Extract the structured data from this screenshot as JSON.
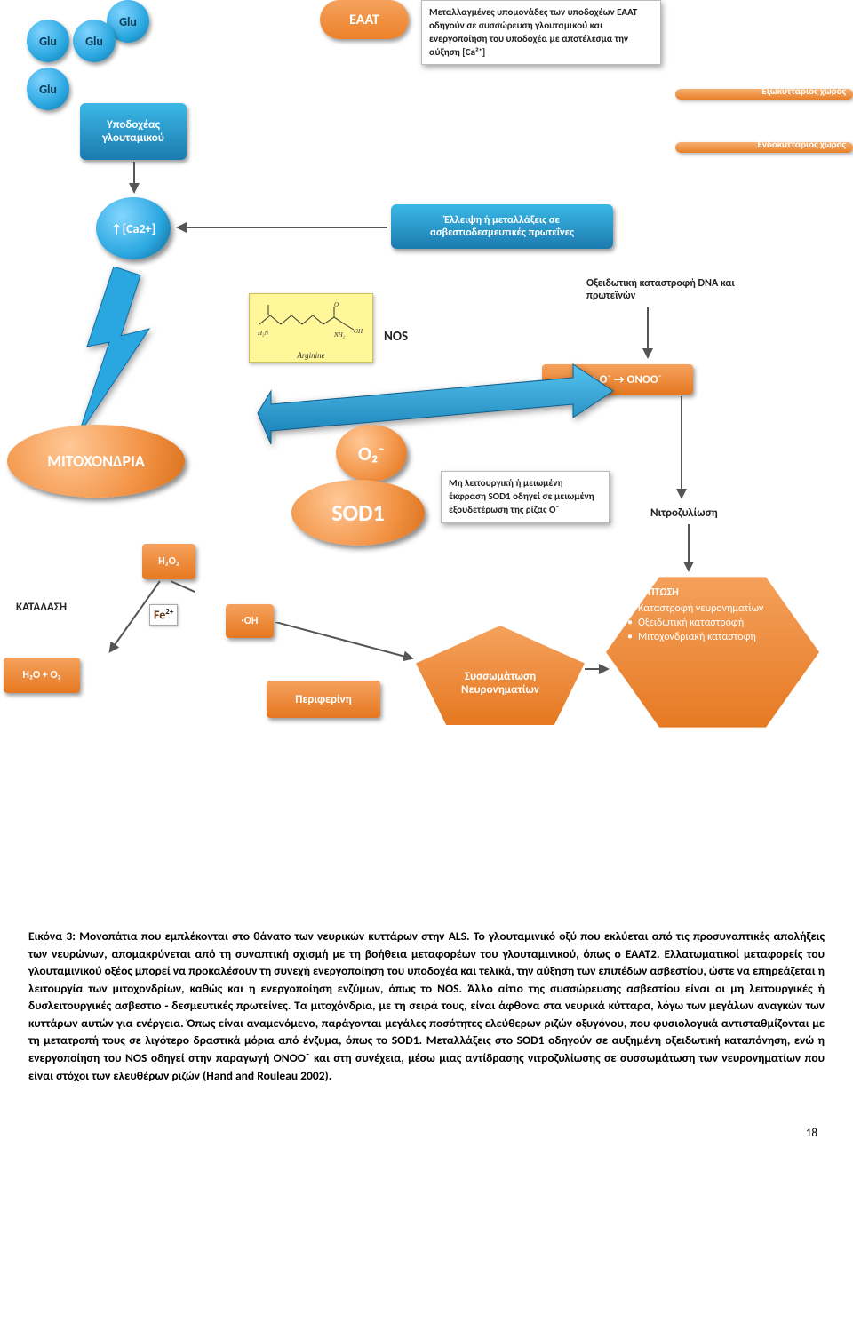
{
  "glu": {
    "label": "Glu"
  },
  "eaat": {
    "label": "EAAT"
  },
  "eaat_info": "Μεταλλαγμένες υπομονάδες των υποδοχέων EAAT οδηγούν σε συσσώρευση γλουταμικού και ενεργοποίηση του υποδοχέα με αποτέλεσμα την αύξηση [Ca²⁺]",
  "receptor": "Υποδοχέας γλουταμικού",
  "space_out": "Εξωκυττάριος χώρος",
  "space_in": "Ενδοκυττάριος χώρος",
  "ca2": "↑[Ca2+]",
  "ca_binding": "Έλλειψη ή μεταλλάξεις σε ασβεστιοδεσμευτικές πρωτεΐνες",
  "dna_dmg": "Οξειδωτική καταστροφή DNA και πρωτεϊνών",
  "arginine": "Arginine",
  "nos": "NOS",
  "onoo": "NO + O⁻ → ONOO⁻",
  "mito_round": "ΜΙΤΟΧΟΝΔΡΙΑ",
  "o2_round": "O₂⁻",
  "sod1_round": "SOD1",
  "sod1_info": "Μη λειτουργική ή μειωμένη έκφραση SOD1 οδηγεί σε μειωμένη εξουδετέρωση της ρίζας O⁻",
  "nitros": "Νιτροζυλίωση",
  "h2o2": "H₂O₂",
  "katalasi": "ΚΑΤΑΛΑΣΗ",
  "fe": "Fe",
  "fe_sup": "2+",
  "oh": "·OH",
  "h2o_o2": "H₂O + O₂",
  "periferini": "Περιφερίνη",
  "aggreg": "Συσσωμάτωση Νευρονηματίων",
  "apopt_title": "ΑΠΟΠΤΩΣΗ",
  "apopt_items": [
    "Καταστροφή νευρονηματίων",
    "Οξειδωτική καταστροφή",
    "Μιτοχονδριακή καταστοφή"
  ],
  "caption_lead": "Εικόνα 3: Μονοπάτια που εμπλέκονται στο θάνατο των νευρικών κυττάρων στην ALS. ",
  "caption_body": "Το γλουταμινικό οξύ που εκλύεται από τις προσυναπτικές απολήξεις των νευρώνων, απομακρύνεται από τη συναπτική σχισμή με τη βοήθεια μεταφορέων του γλουταμινικού, όπως ο EAAT2. Ελλατωματικοί μεταφορείς του γλουταμινικού οξέος μπορεί να προκαλέσουν τη συνεχή ενεργοποίηση του υποδοχέα και τελικά, την αύξηση των επιπέδων ασβεστίου, ώστε να επηρεάζεται η λειτουργία των μιτοχονδρίων, καθώς και η ενεργοποίηση ενζύμων, όπως το NOS. Άλλο αίτιο της συσσώρευσης ασβεστίου είναι οι μη λειτουργικές ή δυσλειτουργικές ασβεστιο - δεσμευτικές πρωτείνες. Τα μιτοχόνδρια, με τη σειρά τους, είναι άφθονα στα νευρικά κύτταρα, λόγω των μεγάλων αναγκών των κυττάρων αυτών για ενέργεια. Όπως είναι αναμενόμενο, παράγονται μεγάλες ποσότητες ελεύθερων ριζών οξυγόνου, που φυσιολογικά αντισταθμίζονται με τη μετατροπή τους σε λιγότερο δραστικά μόρια από ένζυμα, όπως το SOD1. Μεταλλάξεις στο SOD1 οδηγούν σε αυξημένη οξειδωτική καταπόνηση, ενώ η ενεργοποίηση του NOS οδηγεί στην παραγωγή ONOO⁻ και στη συνέχεια, μέσω μιας αντίδρασης νιτροζυλίωσης σε συσσωμάτωση των νευρονηματίων που είναι στόχοι των ελευθέρων ριζών (Hand and Rouleau 2002).",
  "page_num": "18"
}
